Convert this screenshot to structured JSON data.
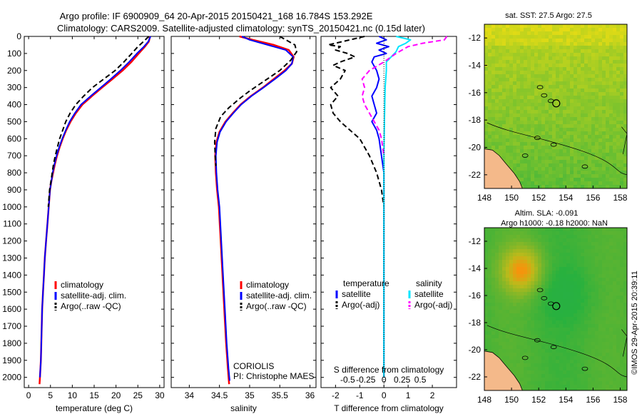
{
  "header": {
    "line1": "Argo profile: IF 6900909_64 20-Apr-2015 20150421_168 16.784S 153.292E",
    "line2": "Climatology: CARS2009. Satellite-adjusted climatology: synTS_20150421.nc (0.15d later)"
  },
  "credit": "©IMOS 29-Apr-2015 20:39:11",
  "colors": {
    "climatology": "#ff0000",
    "satellite": "#0000ff",
    "argo": "#000000",
    "sal_satellite": "#00e5ff",
    "sal_argo": "#ff00ff",
    "land": "#f4b98a"
  },
  "chart_data": [
    {
      "type": "line",
      "id": "temperature",
      "xlabel": "temperature (deg C)",
      "xlim": [
        -1,
        31
      ],
      "xticks": [
        0,
        5,
        10,
        15,
        20,
        25,
        30
      ],
      "ylim": [
        0,
        2060
      ],
      "yticks": [
        0,
        100,
        200,
        300,
        400,
        500,
        600,
        700,
        800,
        900,
        1000,
        1100,
        1200,
        1300,
        1400,
        1500,
        1600,
        1700,
        1800,
        1900,
        2000
      ],
      "legend": [
        "climatology",
        "satellite-adj. clim.",
        "Argo(..raw -QC)"
      ],
      "series": [
        {
          "name": "climatology",
          "style": "climatology",
          "points": [
            [
              27.8,
              0
            ],
            [
              27.5,
              30
            ],
            [
              26.6,
              60
            ],
            [
              25.2,
              100
            ],
            [
              23.5,
              150
            ],
            [
              21.5,
              200
            ],
            [
              19.2,
              250
            ],
            [
              16.8,
              300
            ],
            [
              14.5,
              350
            ],
            [
              12.3,
              400
            ],
            [
              10.8,
              450
            ],
            [
              9.6,
              500
            ],
            [
              8.6,
              550
            ],
            [
              7.8,
              600
            ],
            [
              7.1,
              650
            ],
            [
              6.5,
              700
            ],
            [
              6.0,
              750
            ],
            [
              5.6,
              800
            ],
            [
              5.2,
              850
            ],
            [
              4.9,
              900
            ],
            [
              4.6,
              1000
            ],
            [
              4.3,
              1100
            ],
            [
              4.0,
              1200
            ],
            [
              3.7,
              1300
            ],
            [
              3.5,
              1400
            ],
            [
              3.3,
              1500
            ],
            [
              3.1,
              1600
            ],
            [
              3.0,
              1700
            ],
            [
              2.9,
              1800
            ],
            [
              2.8,
              1900
            ],
            [
              2.6,
              2000
            ],
            [
              2.5,
              2040
            ]
          ]
        },
        {
          "name": "satellite-adj. clim.",
          "style": "satellite",
          "points": [
            [
              27.9,
              0
            ],
            [
              27.4,
              30
            ],
            [
              26.4,
              60
            ],
            [
              24.8,
              100
            ],
            [
              23.0,
              150
            ],
            [
              21.0,
              200
            ],
            [
              18.8,
              250
            ],
            [
              16.5,
              300
            ],
            [
              14.2,
              350
            ],
            [
              12.0,
              400
            ],
            [
              10.6,
              450
            ],
            [
              9.4,
              500
            ],
            [
              8.5,
              550
            ],
            [
              7.7,
              600
            ],
            [
              7.0,
              650
            ],
            [
              6.4,
              700
            ],
            [
              5.9,
              750
            ],
            [
              5.5,
              800
            ],
            [
              5.2,
              850
            ],
            [
              4.9,
              900
            ],
            [
              4.6,
              1000
            ],
            [
              4.3,
              1100
            ],
            [
              4.0,
              1200
            ],
            [
              3.7,
              1300
            ],
            [
              3.5,
              1400
            ],
            [
              3.3,
              1500
            ],
            [
              3.1,
              1600
            ],
            [
              3.0,
              1700
            ],
            [
              2.9,
              1800
            ],
            [
              2.8,
              1900
            ],
            [
              2.6,
              2000
            ]
          ]
        },
        {
          "name": "Argo(..raw -QC)",
          "style": "argo",
          "points": [
            [
              27.5,
              0
            ],
            [
              26.3,
              30
            ],
            [
              25.0,
              60
            ],
            [
              23.6,
              100
            ],
            [
              21.8,
              150
            ],
            [
              19.8,
              200
            ],
            [
              17.2,
              250
            ],
            [
              14.6,
              300
            ],
            [
              12.6,
              350
            ],
            [
              10.8,
              400
            ],
            [
              9.5,
              450
            ],
            [
              8.5,
              500
            ],
            [
              7.8,
              550
            ],
            [
              7.1,
              600
            ],
            [
              6.6,
              650
            ],
            [
              6.1,
              700
            ],
            [
              5.7,
              750
            ],
            [
              5.4,
              800
            ],
            [
              5.1,
              850
            ],
            [
              4.8,
              900
            ],
            [
              4.5,
              1000
            ]
          ]
        }
      ]
    },
    {
      "type": "line",
      "id": "salinity",
      "xlabel": "salinity",
      "xlim": [
        33.7,
        36.1
      ],
      "xticks": [
        34,
        34.5,
        35,
        35.5,
        36
      ],
      "ylim": [
        0,
        2060
      ],
      "legend": [
        "climatology",
        "satellite-adj. clim.",
        "Argo(..raw -QC)"
      ],
      "annotations": [
        "CORIOLIS",
        "PI: Christophe MAES"
      ],
      "series": [
        {
          "name": "climatology",
          "style": "climatology",
          "points": [
            [
              34.83,
              0
            ],
            [
              35.05,
              20
            ],
            [
              35.4,
              50
            ],
            [
              35.65,
              80
            ],
            [
              35.73,
              120
            ],
            [
              35.7,
              160
            ],
            [
              35.58,
              200
            ],
            [
              35.4,
              250
            ],
            [
              35.22,
              300
            ],
            [
              35.02,
              350
            ],
            [
              34.85,
              400
            ],
            [
              34.72,
              450
            ],
            [
              34.6,
              500
            ],
            [
              34.5,
              560
            ],
            [
              34.45,
              620
            ],
            [
              34.43,
              700
            ],
            [
              34.44,
              800
            ],
            [
              34.46,
              900
            ],
            [
              34.49,
              1000
            ],
            [
              34.52,
              1200
            ],
            [
              34.55,
              1400
            ],
            [
              34.58,
              1600
            ],
            [
              34.61,
              1800
            ],
            [
              34.64,
              1950
            ],
            [
              34.66,
              2040
            ]
          ]
        },
        {
          "name": "satellite-adj. clim.",
          "style": "satellite",
          "points": [
            [
              34.87,
              0
            ],
            [
              35.0,
              20
            ],
            [
              35.3,
              50
            ],
            [
              35.6,
              80
            ],
            [
              35.72,
              120
            ],
            [
              35.7,
              160
            ],
            [
              35.6,
              200
            ],
            [
              35.42,
              250
            ],
            [
              35.23,
              300
            ],
            [
              35.03,
              350
            ],
            [
              34.86,
              400
            ],
            [
              34.73,
              450
            ],
            [
              34.61,
              500
            ],
            [
              34.51,
              560
            ],
            [
              34.46,
              620
            ],
            [
              34.44,
              700
            ],
            [
              34.45,
              800
            ],
            [
              34.47,
              900
            ],
            [
              34.5,
              1000
            ],
            [
              34.53,
              1200
            ],
            [
              34.56,
              1400
            ],
            [
              34.59,
              1600
            ],
            [
              34.62,
              1800
            ],
            [
              34.65,
              1950
            ],
            [
              34.67,
              2020
            ]
          ]
        },
        {
          "name": "Argo(..raw -QC)",
          "style": "argo",
          "points": [
            [
              35.5,
              0
            ],
            [
              35.6,
              20
            ],
            [
              35.75,
              50
            ],
            [
              35.78,
              90
            ],
            [
              35.68,
              140
            ],
            [
              35.5,
              200
            ],
            [
              35.25,
              260
            ],
            [
              35.0,
              320
            ],
            [
              34.85,
              360
            ],
            [
              34.65,
              420
            ],
            [
              34.52,
              470
            ],
            [
              34.44,
              540
            ],
            [
              34.42,
              620
            ],
            [
              34.43,
              700
            ],
            [
              34.44,
              760
            ]
          ]
        }
      ]
    },
    {
      "type": "line",
      "id": "difference",
      "xlabel": "T difference from climatology",
      "xlabel_top": "S difference from climatology",
      "xlim": [
        -2.6,
        3.0
      ],
      "xticks": [
        -2,
        -1,
        0,
        1,
        2
      ],
      "xticks_top": [
        {
          "v": -1.5,
          "label": "-0.5"
        },
        {
          "v": -0.75,
          "label": "-0.25"
        },
        {
          "v": 0,
          "label": "0"
        },
        {
          "v": 0.75,
          "label": "0.25"
        },
        {
          "v": 1.5,
          "label": "0.5"
        }
      ],
      "ylim": [
        0,
        2060
      ],
      "legend_left": {
        "title": "temperature",
        "items": [
          "satellite",
          "Argo(-adj)"
        ]
      },
      "legend_right": {
        "title": "salinity",
        "items": [
          "satellite",
          "Argo(-adj)"
        ]
      },
      "series": [
        {
          "name": "T satellite",
          "style": "satellite",
          "points": [
            [
              -0.2,
              0
            ],
            [
              0.1,
              20
            ],
            [
              -0.3,
              40
            ],
            [
              0.2,
              60
            ],
            [
              -0.2,
              80
            ],
            [
              0.1,
              100
            ],
            [
              -0.4,
              120
            ],
            [
              -0.5,
              150
            ],
            [
              -0.3,
              200
            ],
            [
              -0.2,
              250
            ],
            [
              -0.3,
              300
            ],
            [
              -0.5,
              350
            ],
            [
              -0.4,
              400
            ],
            [
              -0.3,
              450
            ],
            [
              -0.5,
              500
            ],
            [
              -0.3,
              550
            ],
            [
              -0.2,
              600
            ],
            [
              -0.1,
              700
            ],
            [
              0,
              800
            ],
            [
              0,
              1000
            ],
            [
              0,
              1500
            ],
            [
              0,
              2000
            ]
          ]
        },
        {
          "name": "T Argo(-adj)",
          "style": "argo",
          "points": [
            [
              -0.8,
              0
            ],
            [
              -2.3,
              50
            ],
            [
              -1.8,
              60
            ],
            [
              -2.0,
              80
            ],
            [
              -1.5,
              100
            ],
            [
              -1.2,
              120
            ],
            [
              -1.8,
              150
            ],
            [
              -2.1,
              170
            ],
            [
              -1.6,
              200
            ],
            [
              -1.8,
              250
            ],
            [
              -2.2,
              300
            ],
            [
              -1.9,
              350
            ],
            [
              -2.2,
              400
            ],
            [
              -2.1,
              450
            ],
            [
              -1.8,
              500
            ],
            [
              -1.4,
              550
            ],
            [
              -1.0,
              600
            ],
            [
              -0.8,
              650
            ],
            [
              -0.6,
              700
            ],
            [
              -0.3,
              800
            ],
            [
              -0.1,
              900
            ],
            [
              0,
              1000
            ]
          ]
        },
        {
          "name": "S satellite",
          "style": "sal_satellite",
          "points": [
            [
              0.5,
              0
            ],
            [
              1.1,
              20
            ],
            [
              0.9,
              40
            ],
            [
              0.6,
              60
            ],
            [
              0.5,
              90
            ],
            [
              0.3,
              120
            ],
            [
              0.1,
              150
            ],
            [
              0.1,
              200
            ],
            [
              0.05,
              300
            ],
            [
              0.02,
              500
            ],
            [
              0,
              700
            ],
            [
              0,
              1000
            ],
            [
              0,
              1500
            ],
            [
              0,
              2000
            ]
          ]
        },
        {
          "name": "S Argo(-adj)",
          "style": "sal_argo",
          "points": [
            [
              2.6,
              0
            ],
            [
              2.5,
              20
            ],
            [
              1.6,
              40
            ],
            [
              1.0,
              60
            ],
            [
              0.5,
              100
            ],
            [
              0,
              150
            ],
            [
              -0.6,
              200
            ],
            [
              -0.9,
              250
            ],
            [
              -0.8,
              300
            ],
            [
              -0.9,
              350
            ],
            [
              -0.8,
              400
            ],
            [
              -0.6,
              450
            ],
            [
              -0.4,
              500
            ],
            [
              -0.2,
              550
            ],
            [
              -0.1,
              600
            ],
            [
              0,
              700
            ]
          ]
        }
      ]
    },
    {
      "type": "heatmap",
      "id": "sst-map",
      "title": "sat. SST: 27.5 Argo: 27.5",
      "xlim": [
        148,
        158.5
      ],
      "ylim": [
        -23,
        -11
      ],
      "xticks": [
        148,
        150,
        152,
        154,
        156,
        158
      ],
      "yticks": [
        -12,
        -14,
        -16,
        -18,
        -20,
        -22
      ],
      "argo_position": {
        "lon": 153.29,
        "lat": -16.78
      }
    },
    {
      "type": "heatmap",
      "id": "sla-map",
      "title1": "Altim. SLA: -0.091",
      "title2": "Argo h1000: -0.18 h2000: NaN",
      "xlim": [
        148,
        158.5
      ],
      "ylim": [
        -23,
        -11
      ],
      "xticks": [
        148,
        150,
        152,
        154,
        156,
        158
      ],
      "yticks": [
        -12,
        -14,
        -16,
        -18,
        -20,
        -22
      ],
      "argo_position": {
        "lon": 153.29,
        "lat": -16.78
      }
    }
  ]
}
